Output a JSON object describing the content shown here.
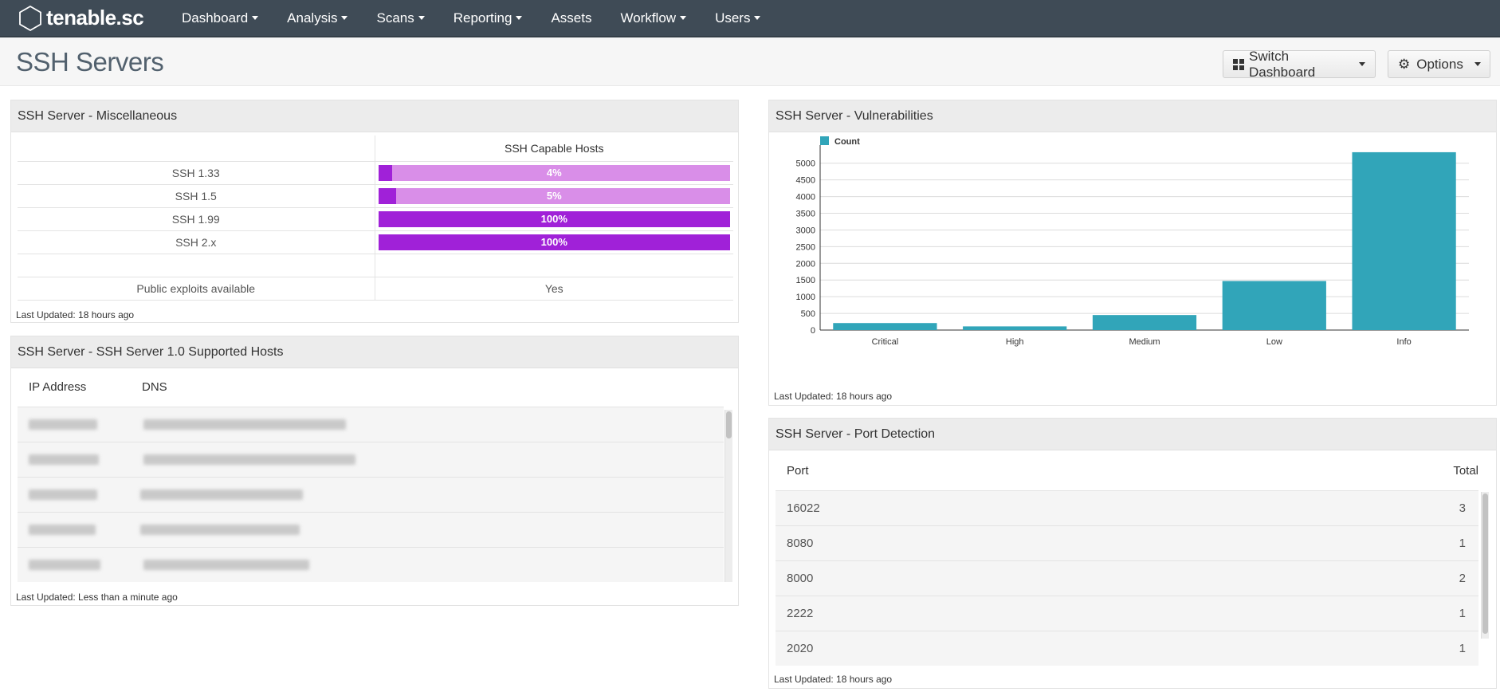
{
  "nav": {
    "logo_text": "tenable.sc",
    "items": [
      {
        "label": "Dashboard",
        "dropdown": true
      },
      {
        "label": "Analysis",
        "dropdown": true
      },
      {
        "label": "Scans",
        "dropdown": true
      },
      {
        "label": "Reporting",
        "dropdown": true
      },
      {
        "label": "Assets",
        "dropdown": false
      },
      {
        "label": "Workflow",
        "dropdown": true
      },
      {
        "label": "Users",
        "dropdown": true
      }
    ]
  },
  "header": {
    "title": "SSH Servers",
    "switch_dashboard_label": "Switch Dashboard",
    "options_label": "Options"
  },
  "colors": {
    "nav_bg": "#3f4b56",
    "bar_fill": "#a021d8",
    "bar_track": "#d98ee8",
    "chart_bar": "#31a5b9"
  },
  "misc_panel": {
    "title": "SSH Server - Miscellaneous",
    "column_header": "SSH Capable Hosts",
    "rows": [
      {
        "label": "SSH 1.33",
        "percent_label": "4%",
        "percent": 4
      },
      {
        "label": "SSH 1.5",
        "percent_label": "5%",
        "percent": 5
      },
      {
        "label": "SSH 1.99",
        "percent_label": "100%",
        "percent": 100
      },
      {
        "label": "SSH 2.x",
        "percent_label": "100%",
        "percent": 100
      }
    ],
    "exploits_label": "Public exploits available",
    "exploits_value": "Yes",
    "last_updated": "Last Updated: 18 hours ago"
  },
  "hosts_panel": {
    "title": "SSH Server - SSH Server 1.0 Supported Hosts",
    "columns": [
      "IP Address",
      "DNS"
    ],
    "row_count_visible": 5,
    "last_updated": "Last Updated: Less than a minute ago"
  },
  "vuln_panel": {
    "title": "SSH Server - Vulnerabilities",
    "last_updated": "Last Updated: 18 hours ago"
  },
  "chart_data": {
    "type": "bar",
    "categories": [
      "Critical",
      "High",
      "Medium",
      "Low",
      "Info"
    ],
    "series": [
      {
        "name": "Count",
        "values": [
          210,
          110,
          450,
          1470,
          5330
        ]
      }
    ],
    "y_ticks": [
      0,
      500,
      1000,
      1500,
      2000,
      2500,
      3000,
      3500,
      4000,
      4500,
      5000
    ],
    "ylim": [
      0,
      5400
    ],
    "grid": true,
    "legend": "top-left"
  },
  "port_panel": {
    "title": "SSH Server - Port Detection",
    "columns": [
      "Port",
      "Total"
    ],
    "rows": [
      {
        "port": "16022",
        "total": "3"
      },
      {
        "port": "8080",
        "total": "1"
      },
      {
        "port": "8000",
        "total": "2"
      },
      {
        "port": "2222",
        "total": "1"
      },
      {
        "port": "2020",
        "total": "1"
      }
    ],
    "last_updated": "Last Updated: 18 hours ago"
  }
}
